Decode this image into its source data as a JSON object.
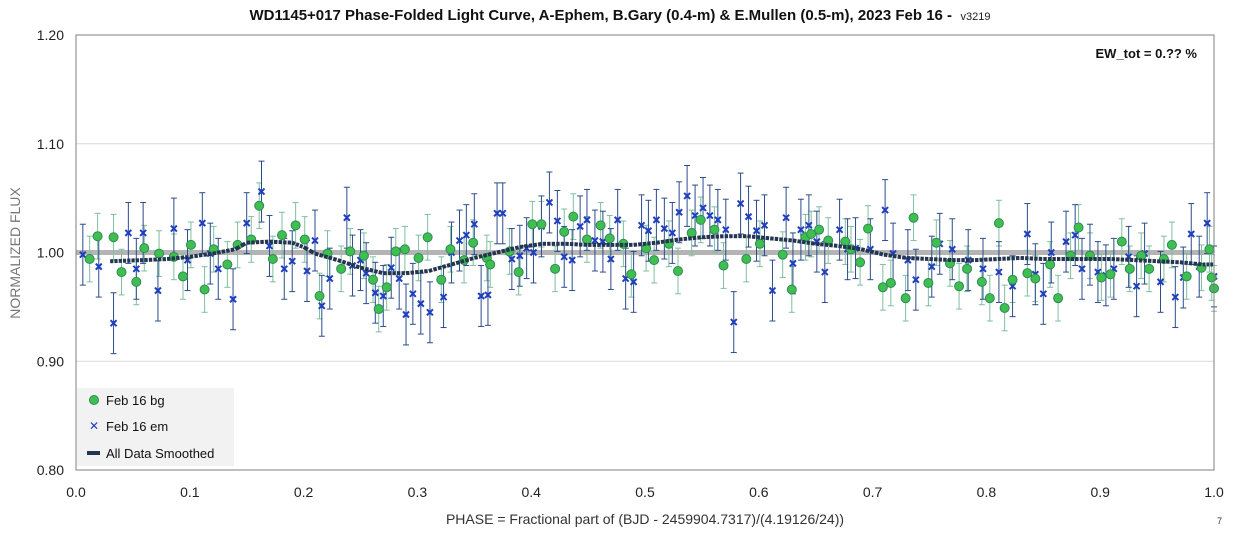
{
  "chart_data": {
    "type": "scatter",
    "title": "WD1145+017 Phase-Folded Light Curve, A-Ephem, B.Gary (0.4-m) & E.Mullen (0.5-m), 2023 Feb 16 -",
    "title_version": "v3219",
    "xlabel": "PHASE = Fractional part of (BJD - 2459904.7317)/(4.19126/24))",
    "ylabel": "NORMALIZED FLUX",
    "xlim": [
      0.0,
      1.0
    ],
    "ylim": [
      0.8,
      1.2
    ],
    "x_ticks": [
      "0.0",
      "0.1",
      "0.2",
      "0.3",
      "0.4",
      "0.5",
      "0.6",
      "0.7",
      "0.8",
      "0.9",
      "1.0"
    ],
    "y_ticks": [
      "0.80",
      "0.90",
      "1.00",
      "1.10",
      "1.20"
    ],
    "annotation": "EW_tot = 0.?? %",
    "corner_note": "7",
    "grid": "horizontal",
    "legend_position": "bottom-left",
    "reference_line": {
      "y": 1.0,
      "color": "#b4b4b4"
    },
    "colors": {
      "bg_fill": "#3fbf4f",
      "bg_edge": "#2e8b57",
      "bg_err": "#7fbf9f",
      "em": "#1f3fbf",
      "em_err": "#2b4b8c",
      "smooth": "#243550"
    },
    "series": [
      {
        "name": "Feb 16 bg",
        "marker": "circle",
        "error": 0.021,
        "points": [
          [
            0.012,
            0.994
          ],
          [
            0.019,
            1.015
          ],
          [
            0.033,
            1.014
          ],
          [
            0.04,
            0.982
          ],
          [
            0.053,
            0.973
          ],
          [
            0.06,
            1.004
          ],
          [
            0.073,
            0.999
          ],
          [
            0.086,
            0.996
          ],
          [
            0.094,
            0.978
          ],
          [
            0.101,
            1.007
          ],
          [
            0.113,
            0.966
          ],
          [
            0.121,
            1.003
          ],
          [
            0.133,
            0.989
          ],
          [
            0.142,
            1.007
          ],
          [
            0.154,
            1.012
          ],
          [
            0.161,
            1.043
          ],
          [
            0.173,
            0.994
          ],
          [
            0.181,
            1.016
          ],
          [
            0.193,
            1.025
          ],
          [
            0.201,
            1.012
          ],
          [
            0.214,
            0.96
          ],
          [
            0.221,
            0.999
          ],
          [
            0.233,
            0.985
          ],
          [
            0.241,
            1.001
          ],
          [
            0.253,
            0.997
          ],
          [
            0.261,
            0.975
          ],
          [
            0.266,
            0.948
          ],
          [
            0.273,
            0.968
          ],
          [
            0.281,
            1.001
          ],
          [
            0.289,
            1.003
          ],
          [
            0.301,
            0.995
          ],
          [
            0.309,
            1.014
          ],
          [
            0.321,
            0.975
          ],
          [
            0.329,
            1.003
          ],
          [
            0.341,
            0.993
          ],
          [
            0.349,
            1.009
          ],
          [
            0.361,
            0.995
          ],
          [
            0.364,
            0.989
          ],
          [
            0.381,
            1.001
          ],
          [
            0.389,
            0.982
          ],
          [
            0.401,
            1.026
          ],
          [
            0.409,
            1.026
          ],
          [
            0.421,
            0.985
          ],
          [
            0.429,
            1.019
          ],
          [
            0.437,
            1.033
          ],
          [
            0.449,
            1.012
          ],
          [
            0.461,
            1.025
          ],
          [
            0.469,
            1.013
          ],
          [
            0.481,
            1.008
          ],
          [
            0.488,
            0.98
          ],
          [
            0.501,
            1.004
          ],
          [
            0.508,
            0.993
          ],
          [
            0.521,
            1.008
          ],
          [
            0.529,
            0.983
          ],
          [
            0.541,
            1.018
          ],
          [
            0.549,
            1.03
          ],
          [
            0.561,
            1.021
          ],
          [
            0.569,
            0.988
          ],
          [
            0.589,
            0.994
          ],
          [
            0.601,
            1.008
          ],
          [
            0.621,
            0.998
          ],
          [
            0.629,
            0.966
          ],
          [
            0.641,
            1.014
          ],
          [
            0.646,
            1.017
          ],
          [
            0.653,
            1.021
          ],
          [
            0.661,
            1.011
          ],
          [
            0.676,
            1.01
          ],
          [
            0.681,
            1.003
          ],
          [
            0.689,
            0.991
          ],
          [
            0.696,
            1.022
          ],
          [
            0.709,
            0.968
          ],
          [
            0.716,
            0.972
          ],
          [
            0.729,
            0.958
          ],
          [
            0.736,
            1.032
          ],
          [
            0.749,
            0.972
          ],
          [
            0.756,
            1.009
          ],
          [
            0.768,
            0.99
          ],
          [
            0.776,
            0.969
          ],
          [
            0.783,
            0.985
          ],
          [
            0.796,
            0.973
          ],
          [
            0.803,
            0.958
          ],
          [
            0.811,
            1.027
          ],
          [
            0.816,
            0.949
          ],
          [
            0.823,
            0.975
          ],
          [
            0.836,
            0.981
          ],
          [
            0.843,
            0.976
          ],
          [
            0.856,
            0.989
          ],
          [
            0.863,
            0.958
          ],
          [
            0.874,
            0.997
          ],
          [
            0.881,
            1.023
          ],
          [
            0.891,
            0.997
          ],
          [
            0.901,
            0.977
          ],
          [
            0.909,
            0.98
          ],
          [
            0.919,
            1.01
          ],
          [
            0.926,
            0.985
          ],
          [
            0.936,
            0.997
          ],
          [
            0.943,
            0.985
          ],
          [
            0.956,
            0.994
          ],
          [
            0.963,
            1.007
          ],
          [
            0.976,
            0.978
          ],
          [
            0.989,
            0.986
          ],
          [
            0.996,
            1.003
          ],
          [
            0.998,
            0.977
          ],
          [
            1.0,
            0.967
          ]
        ]
      },
      {
        "name": "Feb 16 em",
        "marker": "x",
        "error": 0.028,
        "points": [
          [
            0.006,
            0.998
          ],
          [
            0.02,
            0.987
          ],
          [
            0.033,
            0.935
          ],
          [
            0.046,
            1.018
          ],
          [
            0.053,
            0.985
          ],
          [
            0.059,
            1.018
          ],
          [
            0.072,
            0.965
          ],
          [
            0.086,
            1.022
          ],
          [
            0.098,
            0.993
          ],
          [
            0.111,
            1.027
          ],
          [
            0.118,
            0.999
          ],
          [
            0.125,
            0.985
          ],
          [
            0.138,
            0.957
          ],
          [
            0.15,
            1.027
          ],
          [
            0.163,
            1.056
          ],
          [
            0.17,
            1.006
          ],
          [
            0.183,
            0.985
          ],
          [
            0.19,
            0.992
          ],
          [
            0.203,
            0.983
          ],
          [
            0.21,
            1.011
          ],
          [
            0.216,
            0.951
          ],
          [
            0.223,
            0.976
          ],
          [
            0.238,
            1.032
          ],
          [
            0.243,
            0.988
          ],
          [
            0.25,
            0.993
          ],
          [
            0.255,
            0.981
          ],
          [
            0.263,
            0.963
          ],
          [
            0.27,
            0.96
          ],
          [
            0.277,
            0.986
          ],
          [
            0.284,
            0.976
          ],
          [
            0.29,
            0.943
          ],
          [
            0.296,
            0.962
          ],
          [
            0.303,
            0.953
          ],
          [
            0.311,
            0.945
          ],
          [
            0.323,
            0.959
          ],
          [
            0.33,
            1.0
          ],
          [
            0.337,
            1.011
          ],
          [
            0.343,
            1.016
          ],
          [
            0.35,
            1.026
          ],
          [
            0.356,
            0.96
          ],
          [
            0.362,
            0.961
          ],
          [
            0.37,
            1.036
          ],
          [
            0.375,
            1.036
          ],
          [
            0.383,
            0.994
          ],
          [
            0.39,
            0.997
          ],
          [
            0.396,
            1.004
          ],
          [
            0.402,
            1.0
          ],
          [
            0.409,
            1.024
          ],
          [
            0.416,
            1.046
          ],
          [
            0.423,
            1.029
          ],
          [
            0.429,
            0.996
          ],
          [
            0.436,
            0.993
          ],
          [
            0.443,
            1.024
          ],
          [
            0.449,
            1.03
          ],
          [
            0.456,
            1.011
          ],
          [
            0.463,
            1.01
          ],
          [
            0.47,
            0.994
          ],
          [
            0.476,
            1.03
          ],
          [
            0.483,
            0.976
          ],
          [
            0.49,
            0.973
          ],
          [
            0.497,
            1.025
          ],
          [
            0.503,
            1.02
          ],
          [
            0.51,
            1.03
          ],
          [
            0.517,
            1.022
          ],
          [
            0.524,
            1.018
          ],
          [
            0.53,
            1.037
          ],
          [
            0.537,
            1.052
          ],
          [
            0.544,
            1.034
          ],
          [
            0.551,
            1.041
          ],
          [
            0.557,
            1.034
          ],
          [
            0.564,
            1.03
          ],
          [
            0.571,
            1.021
          ],
          [
            0.578,
            0.936
          ],
          [
            0.584,
            1.045
          ],
          [
            0.591,
            1.033
          ],
          [
            0.598,
            1.02
          ],
          [
            0.605,
            1.025
          ],
          [
            0.612,
            0.965
          ],
          [
            0.624,
            1.032
          ],
          [
            0.63,
            0.99
          ],
          [
            0.637,
            1.021
          ],
          [
            0.644,
            1.025
          ],
          [
            0.651,
            1.01
          ],
          [
            0.658,
            0.982
          ],
          [
            0.671,
            1.021
          ],
          [
            0.678,
            1.003
          ],
          [
            0.685,
            1.004
          ],
          [
            0.698,
            1.003
          ],
          [
            0.711,
            1.039
          ],
          [
            0.718,
            0.999
          ],
          [
            0.731,
            0.993
          ],
          [
            0.738,
            0.975
          ],
          [
            0.752,
            0.987
          ],
          [
            0.759,
            1.008
          ],
          [
            0.77,
            1.003
          ],
          [
            0.784,
            0.993
          ],
          [
            0.797,
            0.985
          ],
          [
            0.811,
            0.982
          ],
          [
            0.823,
            0.969
          ],
          [
            0.836,
            1.017
          ],
          [
            0.843,
            0.98
          ],
          [
            0.85,
            0.962
          ],
          [
            0.857,
            1.0
          ],
          [
            0.87,
            1.01
          ],
          [
            0.878,
            1.016
          ],
          [
            0.884,
            0.985
          ],
          [
            0.891,
            0.998
          ],
          [
            0.898,
            0.982
          ],
          [
            0.905,
            0.979
          ],
          [
            0.912,
            0.985
          ],
          [
            0.925,
            0.996
          ],
          [
            0.932,
            0.969
          ],
          [
            0.939,
            0.999
          ],
          [
            0.953,
            0.973
          ],
          [
            0.966,
            0.959
          ],
          [
            0.973,
            0.977
          ],
          [
            0.98,
            1.017
          ],
          [
            0.987,
            0.987
          ],
          [
            0.994,
            1.027
          ],
          [
            1.0,
            0.978
          ]
        ]
      },
      {
        "name": "All Data Smoothed",
        "marker": "dash",
        "points": [
          [
            0.03,
            0.992
          ],
          [
            0.06,
            0.993
          ],
          [
            0.08,
            0.994
          ],
          [
            0.1,
            0.996
          ],
          [
            0.12,
            0.999
          ],
          [
            0.14,
            1.003
          ],
          [
            0.15,
            1.009
          ],
          [
            0.17,
            1.01
          ],
          [
            0.19,
            1.009
          ],
          [
            0.2,
            1.005
          ],
          [
            0.21,
            0.999
          ],
          [
            0.23,
            0.993
          ],
          [
            0.25,
            0.986
          ],
          [
            0.27,
            0.981
          ],
          [
            0.29,
            0.981
          ],
          [
            0.31,
            0.983
          ],
          [
            0.33,
            0.989
          ],
          [
            0.35,
            0.995
          ],
          [
            0.37,
            1.0
          ],
          [
            0.39,
            1.005
          ],
          [
            0.41,
            1.008
          ],
          [
            0.43,
            1.008
          ],
          [
            0.45,
            1.007
          ],
          [
            0.47,
            1.007
          ],
          [
            0.49,
            1.007
          ],
          [
            0.51,
            1.009
          ],
          [
            0.53,
            1.012
          ],
          [
            0.55,
            1.014
          ],
          [
            0.57,
            1.015
          ],
          [
            0.59,
            1.015
          ],
          [
            0.61,
            1.013
          ],
          [
            0.63,
            1.011
          ],
          [
            0.65,
            1.008
          ],
          [
            0.67,
            1.006
          ],
          [
            0.69,
            1.003
          ],
          [
            0.71,
            0.998
          ],
          [
            0.73,
            0.995
          ],
          [
            0.75,
            0.994
          ],
          [
            0.77,
            0.993
          ],
          [
            0.79,
            0.993
          ],
          [
            0.81,
            0.994
          ],
          [
            0.83,
            0.995
          ],
          [
            0.85,
            0.994
          ],
          [
            0.87,
            0.994
          ],
          [
            0.89,
            0.994
          ],
          [
            0.91,
            0.994
          ],
          [
            0.93,
            0.993
          ],
          [
            0.95,
            0.992
          ],
          [
            0.97,
            0.991
          ],
          [
            0.99,
            0.989
          ],
          [
            1.0,
            0.989
          ]
        ]
      }
    ]
  }
}
